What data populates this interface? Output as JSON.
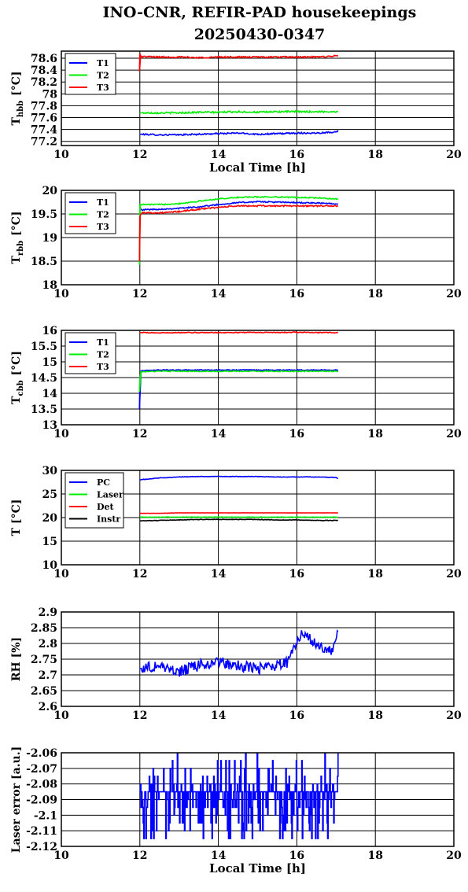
{
  "page": {
    "title_line1": "INO-CNR, REFIR-PAD housekeepings",
    "title_line2": "20250430-0347"
  },
  "colors": {
    "blue": "#0000ff",
    "green": "#00ee00",
    "red": "#ff0000",
    "black": "#000000"
  },
  "chart_data": [
    {
      "type": "line",
      "ylabel": "T_hbb [°C]",
      "ylabel_main": "T",
      "ylabel_sub": "hbb",
      "ylabel_unit": "[°C]",
      "xlabel": "Local Time [h]",
      "xlim": [
        10,
        20
      ],
      "ylim": [
        77.13,
        78.72
      ],
      "xticks": [
        "10",
        "12",
        "14",
        "16",
        "18",
        "20"
      ],
      "yticks": [
        "77.2",
        "77.4",
        "77.6",
        "77.8",
        "78",
        "78.2",
        "78.4",
        "78.6"
      ],
      "grid": true,
      "legend_position": "top-left",
      "series": [
        {
          "name": "T1",
          "color": "#0000ff",
          "x": [
            12,
            12.5,
            13,
            13.5,
            14,
            14.5,
            15,
            15.5,
            16,
            16.5,
            17,
            17.05
          ],
          "y": [
            77.32,
            77.31,
            77.31,
            77.32,
            77.33,
            77.34,
            77.32,
            77.33,
            77.34,
            77.34,
            77.36,
            77.38
          ],
          "noise": 0.012
        },
        {
          "name": "T2",
          "color": "#00ee00",
          "x": [
            12,
            12.5,
            13,
            13.5,
            14,
            14.5,
            15,
            15.5,
            16,
            16.5,
            17,
            17.05
          ],
          "y": [
            77.68,
            77.68,
            77.68,
            77.69,
            77.69,
            77.7,
            77.69,
            77.7,
            77.7,
            77.7,
            77.7,
            77.71
          ],
          "noise": 0.014
        },
        {
          "name": "T3",
          "color": "#ff0000",
          "x": [
            11.99,
            12,
            12.02,
            12.5,
            13,
            13.5,
            14,
            14.5,
            15,
            15.5,
            16,
            16.5,
            17,
            17.05
          ],
          "y": [
            78.38,
            78.68,
            78.63,
            78.62,
            78.62,
            78.61,
            78.62,
            78.62,
            78.62,
            78.62,
            78.62,
            78.62,
            78.64,
            78.64
          ],
          "noise": 0.012
        }
      ]
    },
    {
      "type": "line",
      "ylabel": "T_rbb [°C]",
      "ylabel_main": "T",
      "ylabel_sub": "rbb",
      "ylabel_unit": "[°C]",
      "xlabel": "",
      "xlim": [
        10,
        20
      ],
      "ylim": [
        18,
        20
      ],
      "xticks": [
        "10",
        "12",
        "14",
        "16",
        "18",
        "20"
      ],
      "yticks": [
        "18",
        "18.5",
        "19",
        "19.5",
        "20"
      ],
      "grid": true,
      "legend_position": "top-left",
      "series": [
        {
          "name": "T1",
          "color": "#0000ff",
          "x": [
            12,
            12.05,
            12.5,
            13,
            13.5,
            14,
            14.5,
            15,
            15.5,
            16,
            16.5,
            17,
            17.05
          ],
          "y": [
            19.62,
            19.59,
            19.6,
            19.62,
            19.65,
            19.7,
            19.74,
            19.76,
            19.75,
            19.74,
            19.73,
            19.72,
            19.72
          ],
          "noise": 0.012
        },
        {
          "name": "T2",
          "color": "#00ee00",
          "x": [
            11.99,
            12,
            12.05,
            12.5,
            13,
            13.5,
            14,
            14.5,
            15,
            15.5,
            16,
            16.5,
            17,
            17.05
          ],
          "y": [
            18.42,
            19.7,
            19.7,
            19.7,
            19.72,
            19.77,
            19.82,
            19.85,
            19.86,
            19.86,
            19.85,
            19.84,
            19.82,
            19.82
          ],
          "noise": 0.012
        },
        {
          "name": "T3",
          "color": "#ff0000",
          "x": [
            11.99,
            12,
            12.05,
            12.5,
            13,
            13.5,
            14,
            14.5,
            15,
            15.5,
            16,
            16.5,
            17,
            17.05
          ],
          "y": [
            18.5,
            19.45,
            19.53,
            19.52,
            19.55,
            19.6,
            19.64,
            19.67,
            19.67,
            19.67,
            19.67,
            19.67,
            19.67,
            19.67
          ],
          "noise": 0.014
        }
      ]
    },
    {
      "type": "line",
      "ylabel": "T_cbb [°C]",
      "ylabel_main": "T",
      "ylabel_sub": "cbb",
      "ylabel_unit": "[°C]",
      "xlabel": "",
      "xlim": [
        10,
        20
      ],
      "ylim": [
        13,
        16
      ],
      "xticks": [
        "10",
        "12",
        "14",
        "16",
        "18",
        "20"
      ],
      "yticks": [
        "13",
        "13.5",
        "14",
        "14.5",
        "15",
        "15.5",
        "16"
      ],
      "grid": true,
      "legend_position": "top-left",
      "series": [
        {
          "name": "T1",
          "color": "#0000ff",
          "x": [
            11.99,
            12,
            12.03,
            12.5,
            13,
            13.5,
            14,
            14.5,
            15,
            15.5,
            16,
            16.5,
            17,
            17.05
          ],
          "y": [
            13.5,
            14.3,
            14.72,
            14.74,
            14.74,
            14.74,
            14.74,
            14.74,
            14.74,
            14.74,
            14.74,
            14.74,
            14.74,
            14.74
          ],
          "noise": 0.012
        },
        {
          "name": "T2",
          "color": "#00ee00",
          "x": [
            11.99,
            12,
            12.03,
            12.5,
            13,
            13.5,
            14,
            14.5,
            15,
            15.5,
            16,
            16.5,
            17,
            17.05
          ],
          "y": [
            14.05,
            14.45,
            14.69,
            14.7,
            14.7,
            14.7,
            14.7,
            14.7,
            14.7,
            14.7,
            14.7,
            14.7,
            14.7,
            14.7
          ],
          "noise": 0.016
        },
        {
          "name": "T3",
          "color": "#ff0000",
          "x": [
            12,
            12.5,
            13,
            13.5,
            14,
            14.5,
            15,
            15.5,
            16,
            16.5,
            17,
            17.05
          ],
          "y": [
            15.93,
            15.92,
            15.93,
            15.93,
            15.93,
            15.93,
            15.94,
            15.93,
            15.94,
            15.93,
            15.93,
            15.93
          ],
          "noise": 0.012
        }
      ]
    },
    {
      "type": "line",
      "ylabel": "T [°C]",
      "ylabel_main": "T [°C]",
      "ylabel_sub": "",
      "ylabel_unit": "",
      "xlabel": "",
      "xlim": [
        10,
        20
      ],
      "ylim": [
        10,
        30
      ],
      "xticks": [
        "10",
        "12",
        "14",
        "16",
        "18",
        "20"
      ],
      "yticks": [
        "10",
        "15",
        "20",
        "25",
        "30"
      ],
      "grid": true,
      "legend_position": "top-left",
      "series": [
        {
          "name": "PC",
          "color": "#0000ff",
          "x": [
            12,
            12.5,
            13,
            13.5,
            14,
            14.5,
            15,
            15.5,
            16,
            16.5,
            17,
            17.05
          ],
          "y": [
            28.0,
            28.4,
            28.6,
            28.7,
            28.7,
            28.7,
            28.7,
            28.6,
            28.6,
            28.6,
            28.5,
            28.3
          ],
          "noise": 0.05
        },
        {
          "name": "Laser",
          "color": "#00ee00",
          "x": [
            12,
            12.5,
            13,
            13.5,
            14,
            14.5,
            15,
            15.5,
            16,
            16.5,
            17,
            17.05
          ],
          "y": [
            20.1,
            20.1,
            20.1,
            20.1,
            20.1,
            20.1,
            20.1,
            20.1,
            20.1,
            20.1,
            20.1,
            20.1
          ],
          "noise": 0.04
        },
        {
          "name": "Det",
          "color": "#ff0000",
          "x": [
            12,
            12.5,
            13,
            13.5,
            14,
            14.5,
            15,
            15.5,
            16,
            16.5,
            17,
            17.05
          ],
          "y": [
            20.9,
            20.9,
            21.0,
            21.0,
            21.0,
            21.0,
            21.0,
            21.0,
            21.0,
            21.0,
            21.0,
            21.0
          ],
          "noise": 0.02
        },
        {
          "name": "Instr",
          "color": "#000000",
          "x": [
            12,
            12.5,
            13,
            13.5,
            14,
            14.5,
            15,
            15.5,
            16,
            16.5,
            17,
            17.05
          ],
          "y": [
            19.3,
            19.4,
            19.5,
            19.6,
            19.6,
            19.6,
            19.6,
            19.5,
            19.5,
            19.4,
            19.4,
            19.4
          ],
          "noise": 0.05
        }
      ]
    },
    {
      "type": "line",
      "ylabel": "RH [%]",
      "ylabel_main": "RH [%]",
      "ylabel_sub": "",
      "ylabel_unit": "",
      "xlabel": "",
      "xlim": [
        10,
        20
      ],
      "ylim": [
        2.6,
        2.9
      ],
      "xticks": [
        "10",
        "12",
        "14",
        "16",
        "18",
        "20"
      ],
      "yticks": [
        "2.6",
        "2.65",
        "2.7",
        "2.75",
        "2.8",
        "2.85",
        "2.9"
      ],
      "grid": true,
      "legend_position": "none",
      "series": [
        {
          "name": "",
          "color": "#0000ff",
          "x": [
            12,
            12.5,
            13,
            13.5,
            14,
            14.5,
            15,
            15.5,
            15.8,
            15.9,
            16.1,
            16.3,
            16.6,
            16.9,
            17.05
          ],
          "y": [
            2.72,
            2.73,
            2.71,
            2.73,
            2.74,
            2.73,
            2.72,
            2.73,
            2.74,
            2.79,
            2.83,
            2.82,
            2.79,
            2.77,
            2.83
          ],
          "noise": 0.018
        }
      ]
    },
    {
      "type": "line",
      "ylabel": "Laser error [a.u.]",
      "ylabel_main": "Laser error [a.u.]",
      "ylabel_sub": "",
      "ylabel_unit": "",
      "xlabel": "Local Time [h]",
      "xlim": [
        10,
        20
      ],
      "ylim": [
        -2.12,
        -2.06
      ],
      "xticks": [
        "10",
        "12",
        "14",
        "16",
        "18",
        "20"
      ],
      "yticks": [
        "-2.12",
        "-2.11",
        "-2.1",
        "-2.09",
        "-2.08",
        "-2.07",
        "-2.06"
      ],
      "grid": true,
      "legend_position": "none",
      "series": [
        {
          "name": "",
          "color": "#0000ff",
          "x": [
            12,
            17.05
          ],
          "y": [
            -2.085,
            -2.085
          ],
          "levels": [
            -2.115,
            -2.11,
            -2.105,
            -2.1,
            -2.095,
            -2.09,
            -2.085,
            -2.08,
            -2.075,
            -2.07,
            -2.065,
            -2.06
          ]
        }
      ]
    }
  ]
}
